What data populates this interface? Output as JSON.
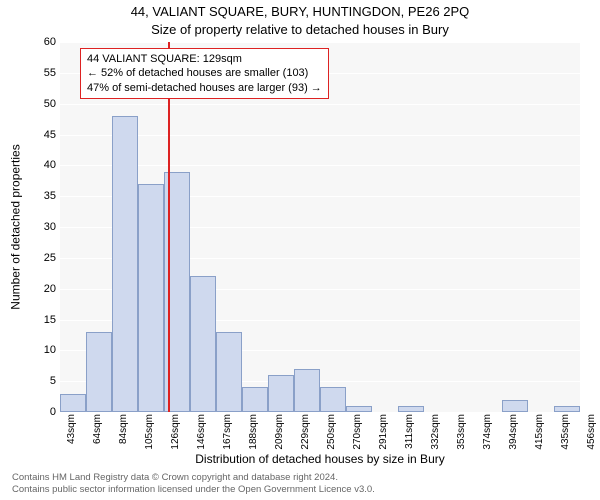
{
  "title_main": "44, VALIANT SQUARE, BURY, HUNTINGDON, PE26 2PQ",
  "title_sub": "Size of property relative to detached houses in Bury",
  "ylabel": "Number of detached properties",
  "xlabel": "Distribution of detached houses by size in Bury",
  "footer_line1": "Contains HM Land Registry data © Crown copyright and database right 2024.",
  "footer_line2": "Contains public sector information licensed under the Open Government Licence v3.0.",
  "chart": {
    "type": "histogram",
    "background_color": "#f7f7f7",
    "grid_color": "#ffffff",
    "bar_fill": "#cfd9ee",
    "bar_border": "#8aa0c8",
    "marker_color": "#d22",
    "callout_bg": "#ffffff",
    "callout_border": "#d22",
    "ylim": [
      0,
      60
    ],
    "ytick_step": 5,
    "yticks": [
      0,
      5,
      10,
      15,
      20,
      25,
      30,
      35,
      40,
      45,
      50,
      55,
      60
    ],
    "xticks": [
      "43sqm",
      "64sqm",
      "84sqm",
      "105sqm",
      "126sqm",
      "146sqm",
      "167sqm",
      "188sqm",
      "209sqm",
      "229sqm",
      "250sqm",
      "270sqm",
      "291sqm",
      "311sqm",
      "332sqm",
      "353sqm",
      "374sqm",
      "394sqm",
      "415sqm",
      "435sqm",
      "456sqm"
    ],
    "bars": [
      3,
      13,
      48,
      37,
      39,
      22,
      13,
      4,
      6,
      7,
      4,
      1,
      0,
      1,
      0,
      0,
      0,
      2,
      0,
      1
    ],
    "marker_bin_index": 4,
    "marker_fraction_in_bin": 0.18,
    "callout": {
      "line1": "44 VALIANT SQUARE: 129sqm",
      "line2": "← 52% of detached houses are smaller (103)",
      "line3": "47% of semi-detached houses are larger (93) →"
    }
  }
}
